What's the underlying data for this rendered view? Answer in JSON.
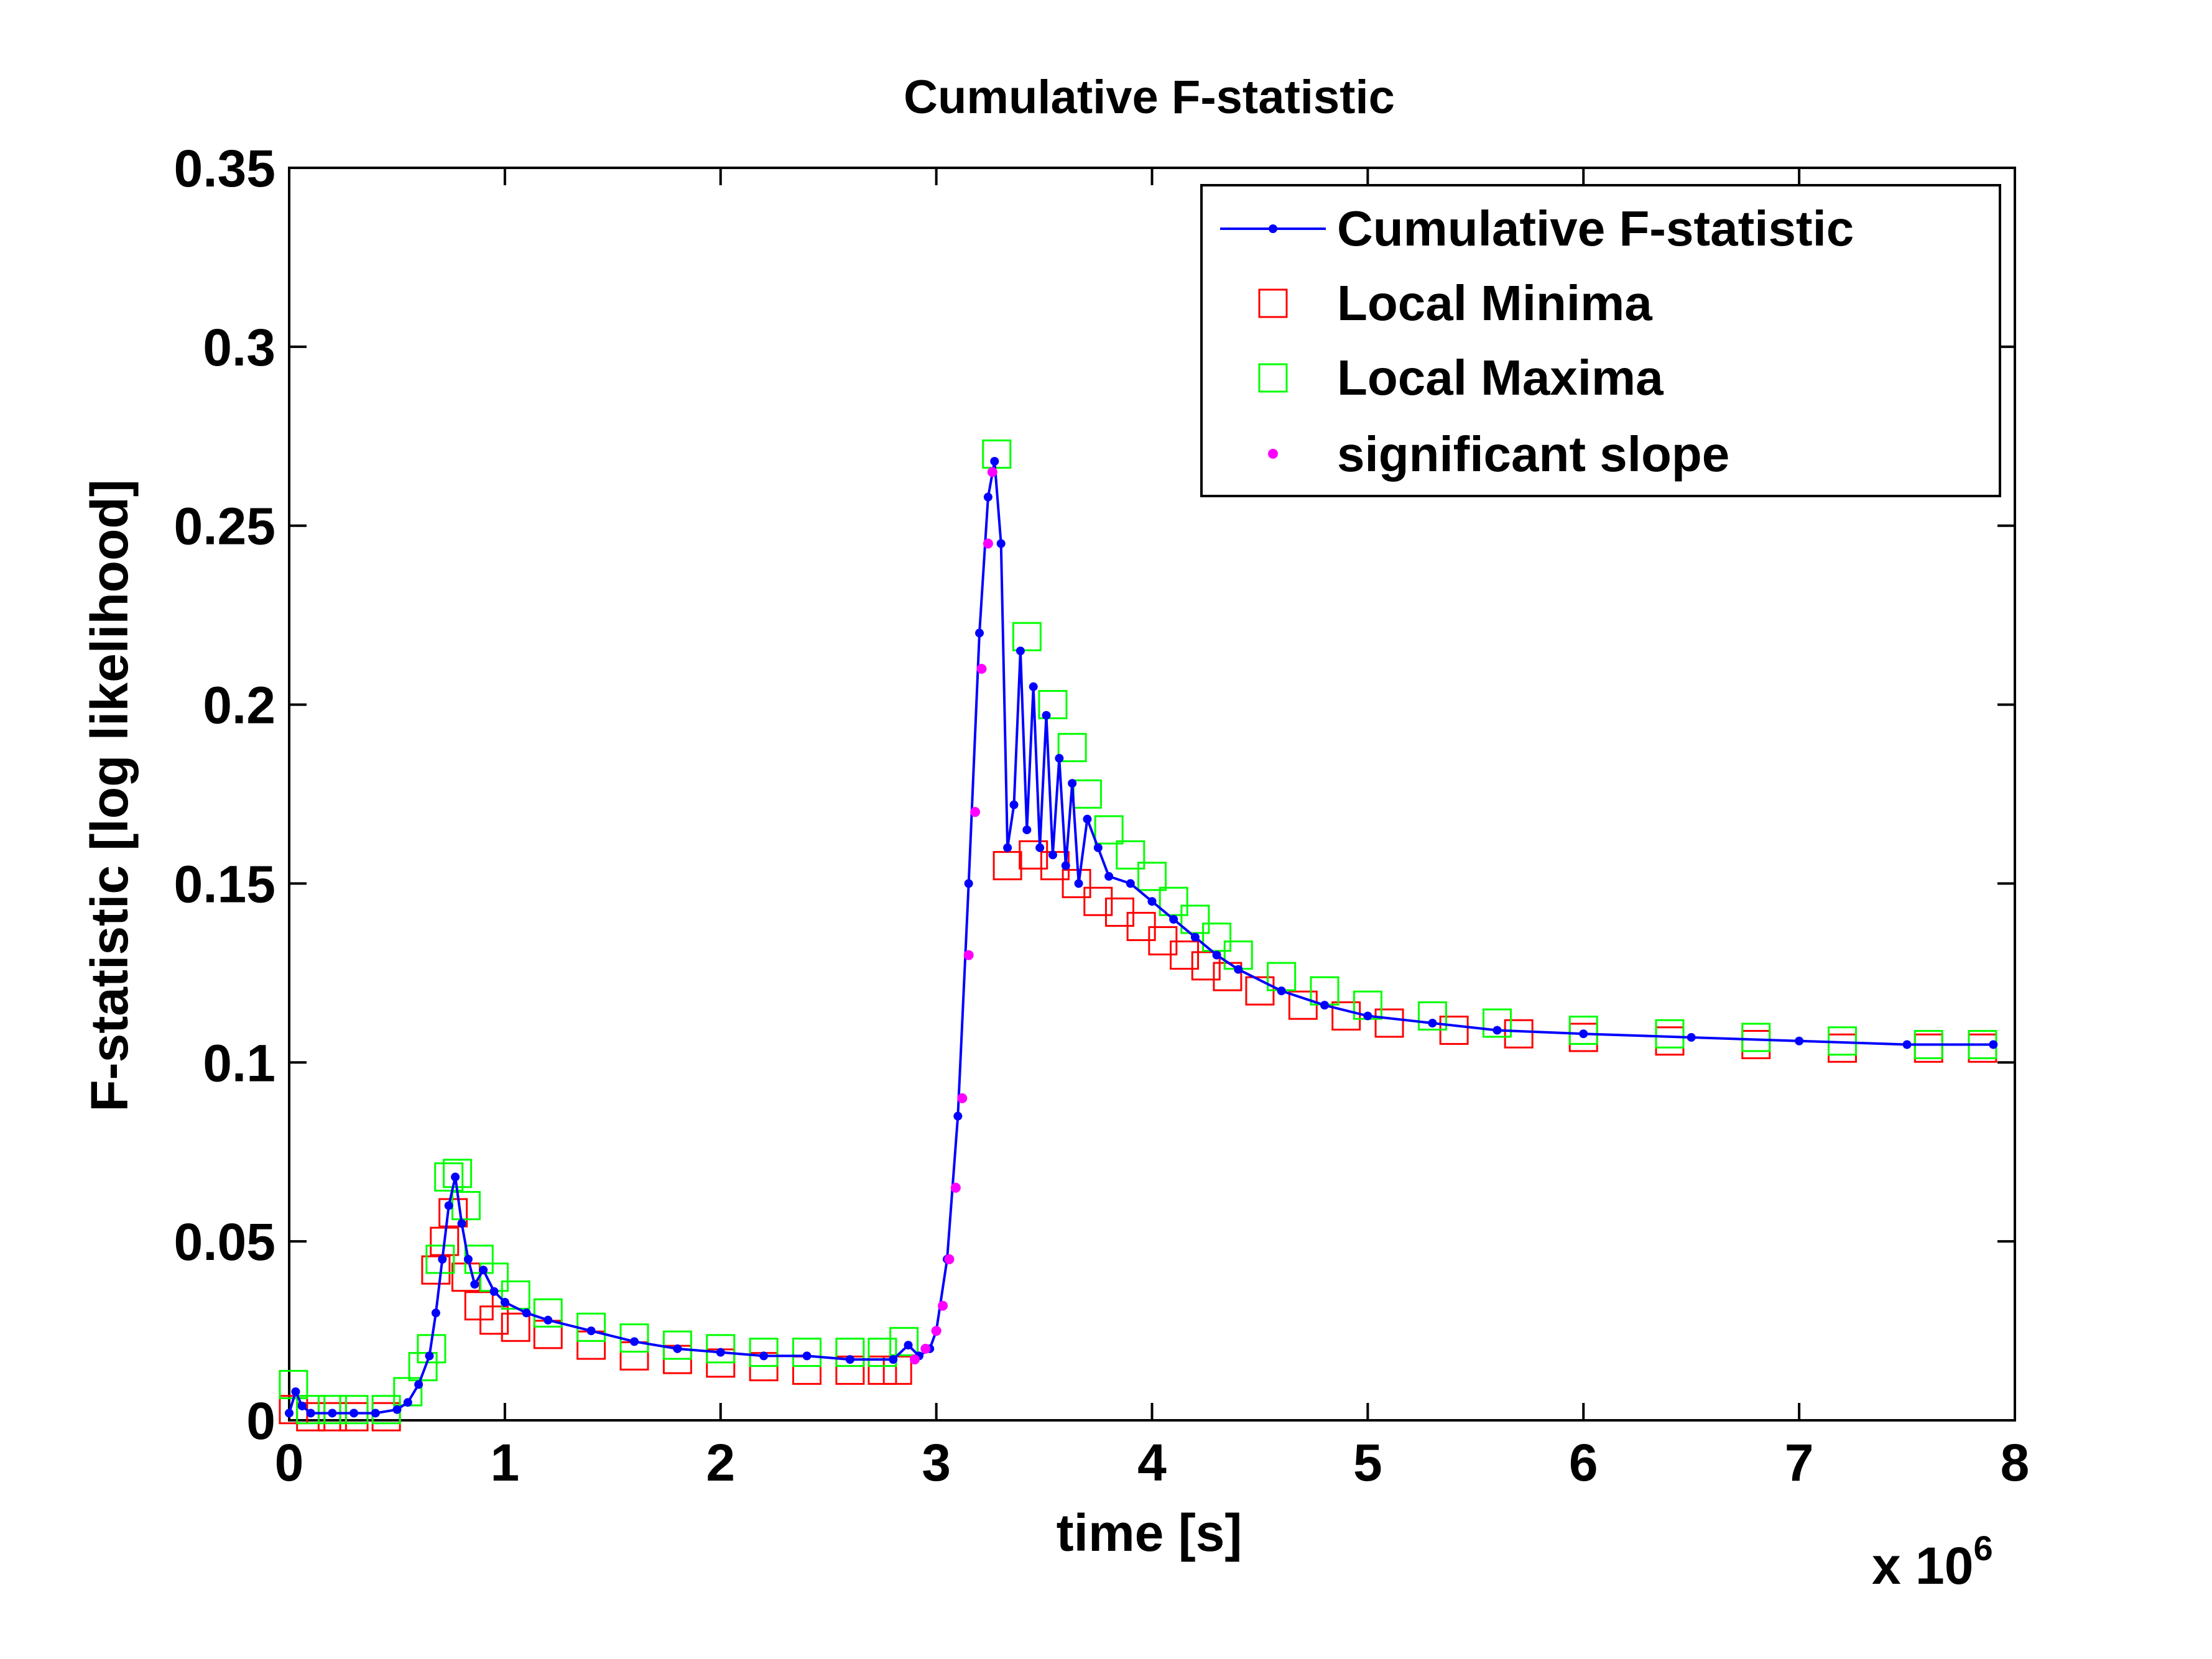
{
  "chart_data": {
    "type": "line",
    "title": "Cumulative F-statistic",
    "xlabel": "time [s]",
    "ylabel": "F-statistic [log likelihood]",
    "x_multiplier": "x 10",
    "x_multiplier_exponent": "6",
    "xlim": [
      0,
      8
    ],
    "ylim": [
      0,
      0.35
    ],
    "xticks": [
      0,
      1,
      2,
      3,
      4,
      5,
      6,
      7,
      8
    ],
    "xtick_labels": [
      "0",
      "1",
      "2",
      "3",
      "4",
      "5",
      "6",
      "7",
      "8"
    ],
    "yticks": [
      0,
      0.05,
      0.1,
      0.15,
      0.2,
      0.25,
      0.3,
      0.35
    ],
    "ytick_labels": [
      "0",
      "0.05",
      "0.1",
      "0.15",
      "0.2",
      "0.25",
      "0.3",
      "0.35"
    ],
    "grid": false,
    "legend_position": "top-right",
    "legend": [
      {
        "label": "Cumulative F-statistic",
        "marker": "line-dot",
        "color": "#0000ff"
      },
      {
        "label": "Local Minima",
        "marker": "square",
        "color": "#ff0000"
      },
      {
        "label": "Local Maxima",
        "marker": "square",
        "color": "#00ff00"
      },
      {
        "label": "significant slope",
        "marker": "dot",
        "color": "#ff00ff"
      }
    ],
    "series": [
      {
        "name": "Cumulative F-statistic",
        "color": "#0000ff",
        "x": [
          0.0,
          0.03,
          0.06,
          0.1,
          0.2,
          0.3,
          0.4,
          0.5,
          0.55,
          0.6,
          0.65,
          0.68,
          0.71,
          0.74,
          0.77,
          0.8,
          0.83,
          0.86,
          0.9,
          0.95,
          1.0,
          1.1,
          1.2,
          1.4,
          1.6,
          1.8,
          2.0,
          2.2,
          2.4,
          2.6,
          2.8,
          2.87,
          2.92,
          2.97,
          3.0,
          3.05,
          3.1,
          3.15,
          3.2,
          3.24,
          3.27,
          3.3,
          3.33,
          3.36,
          3.39,
          3.42,
          3.45,
          3.48,
          3.51,
          3.54,
          3.57,
          3.6,
          3.63,
          3.66,
          3.7,
          3.75,
          3.8,
          3.9,
          4.0,
          4.1,
          4.2,
          4.3,
          4.4,
          4.6,
          4.8,
          5.0,
          5.3,
          5.6,
          6.0,
          6.5,
          7.0,
          7.5,
          7.9
        ],
        "y": [
          0.002,
          0.008,
          0.004,
          0.002,
          0.002,
          0.002,
          0.002,
          0.003,
          0.005,
          0.01,
          0.018,
          0.03,
          0.045,
          0.06,
          0.068,
          0.055,
          0.045,
          0.038,
          0.042,
          0.036,
          0.033,
          0.03,
          0.028,
          0.025,
          0.022,
          0.02,
          0.019,
          0.018,
          0.018,
          0.017,
          0.017,
          0.021,
          0.018,
          0.02,
          0.025,
          0.045,
          0.085,
          0.15,
          0.22,
          0.258,
          0.268,
          0.245,
          0.16,
          0.172,
          0.215,
          0.165,
          0.205,
          0.16,
          0.197,
          0.158,
          0.185,
          0.155,
          0.178,
          0.15,
          0.168,
          0.16,
          0.152,
          0.15,
          0.145,
          0.14,
          0.135,
          0.13,
          0.126,
          0.12,
          0.116,
          0.113,
          0.111,
          0.109,
          0.108,
          0.107,
          0.106,
          0.105,
          0.105
        ]
      },
      {
        "name": "Local Minima",
        "color": "#ff0000",
        "x": [
          0.02,
          0.1,
          0.2,
          0.3,
          0.45,
          0.68,
          0.72,
          0.76,
          0.82,
          0.88,
          0.95,
          1.05,
          1.2,
          1.4,
          1.6,
          1.8,
          2.0,
          2.2,
          2.4,
          2.6,
          2.75,
          2.82,
          3.33,
          3.45,
          3.55,
          3.65,
          3.75,
          3.85,
          3.95,
          4.05,
          4.15,
          4.25,
          4.35,
          4.5,
          4.7,
          4.9,
          5.1,
          5.4,
          5.7,
          6.0,
          6.4,
          6.8,
          7.2,
          7.6,
          7.85
        ],
        "y": [
          0.003,
          0.001,
          0.001,
          0.001,
          0.001,
          0.042,
          0.05,
          0.058,
          0.04,
          0.032,
          0.028,
          0.026,
          0.024,
          0.021,
          0.018,
          0.017,
          0.016,
          0.015,
          0.014,
          0.014,
          0.014,
          0.014,
          0.155,
          0.158,
          0.155,
          0.15,
          0.145,
          0.142,
          0.138,
          0.134,
          0.13,
          0.127,
          0.124,
          0.12,
          0.116,
          0.113,
          0.111,
          0.109,
          0.108,
          0.107,
          0.106,
          0.105,
          0.104,
          0.104,
          0.104
        ]
      },
      {
        "name": "Local Maxima",
        "color": "#00ff00",
        "x": [
          0.02,
          0.1,
          0.2,
          0.3,
          0.45,
          0.55,
          0.62,
          0.66,
          0.7,
          0.74,
          0.78,
          0.82,
          0.88,
          0.95,
          1.05,
          1.2,
          1.4,
          1.6,
          1.8,
          2.0,
          2.2,
          2.4,
          2.6,
          2.75,
          2.85,
          3.28,
          3.42,
          3.54,
          3.63,
          3.7,
          3.8,
          3.9,
          4.0,
          4.1,
          4.2,
          4.3,
          4.4,
          4.6,
          4.8,
          5.0,
          5.3,
          5.6,
          6.0,
          6.4,
          6.8,
          7.2,
          7.6,
          7.85
        ],
        "y": [
          0.01,
          0.003,
          0.003,
          0.003,
          0.003,
          0.008,
          0.015,
          0.02,
          0.045,
          0.068,
          0.069,
          0.06,
          0.045,
          0.04,
          0.035,
          0.03,
          0.026,
          0.023,
          0.021,
          0.02,
          0.019,
          0.019,
          0.019,
          0.019,
          0.022,
          0.27,
          0.219,
          0.2,
          0.188,
          0.175,
          0.165,
          0.158,
          0.152,
          0.145,
          0.14,
          0.135,
          0.13,
          0.124,
          0.12,
          0.116,
          0.113,
          0.111,
          0.109,
          0.108,
          0.107,
          0.106,
          0.105,
          0.105
        ]
      },
      {
        "name": "significant slope",
        "color": "#ff00ff",
        "x": [
          2.9,
          2.95,
          3.0,
          3.03,
          3.06,
          3.09,
          3.12,
          3.15,
          3.18,
          3.21,
          3.24,
          3.26
        ],
        "y": [
          0.017,
          0.02,
          0.025,
          0.032,
          0.045,
          0.065,
          0.09,
          0.13,
          0.17,
          0.21,
          0.245,
          0.265
        ]
      }
    ]
  }
}
